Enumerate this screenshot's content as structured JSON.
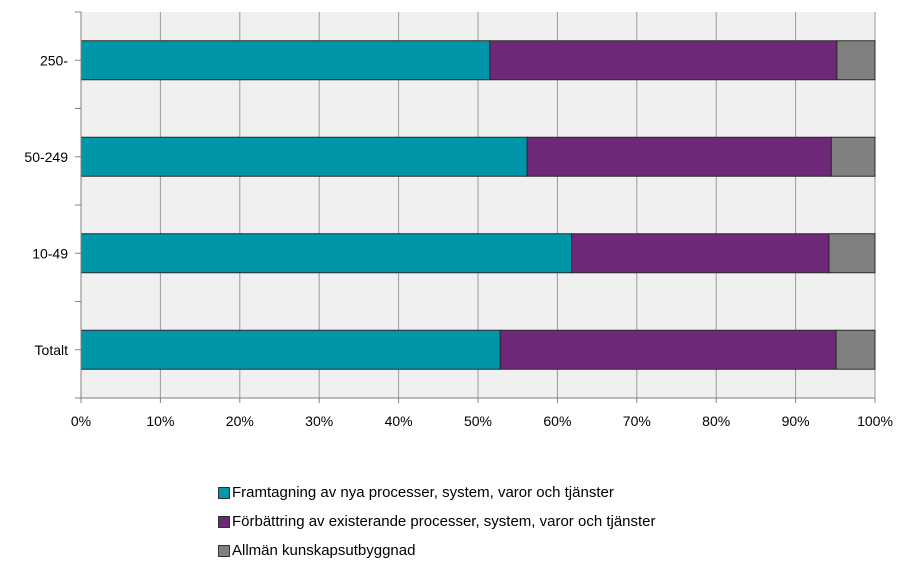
{
  "chart_data": {
    "type": "bar",
    "orientation": "horizontal",
    "stacked": "percent",
    "categories": [
      "250-",
      "50-249",
      "10-49",
      "Totalt"
    ],
    "series": [
      {
        "name": "Framtagning av nya processer, system, varor och tjänster",
        "color": "#0096aa",
        "values": [
          51.5,
          56.2,
          61.8,
          52.8
        ]
      },
      {
        "name": "Förbättring av existerande processer, system, varor och tjänster",
        "color": "#6e2878",
        "values": [
          43.7,
          38.3,
          32.4,
          42.3
        ]
      },
      {
        "name": "Allmän kunskapsutbyggnad",
        "color": "#808080",
        "values": [
          4.8,
          5.5,
          5.8,
          4.9
        ]
      }
    ],
    "xticks": [
      "0%",
      "10%",
      "20%",
      "30%",
      "40%",
      "50%",
      "60%",
      "70%",
      "80%",
      "90%",
      "100%"
    ],
    "xlim": [
      0,
      100
    ],
    "grid": true,
    "plot_background": "#f0f0f0",
    "legend_position": "bottom"
  }
}
